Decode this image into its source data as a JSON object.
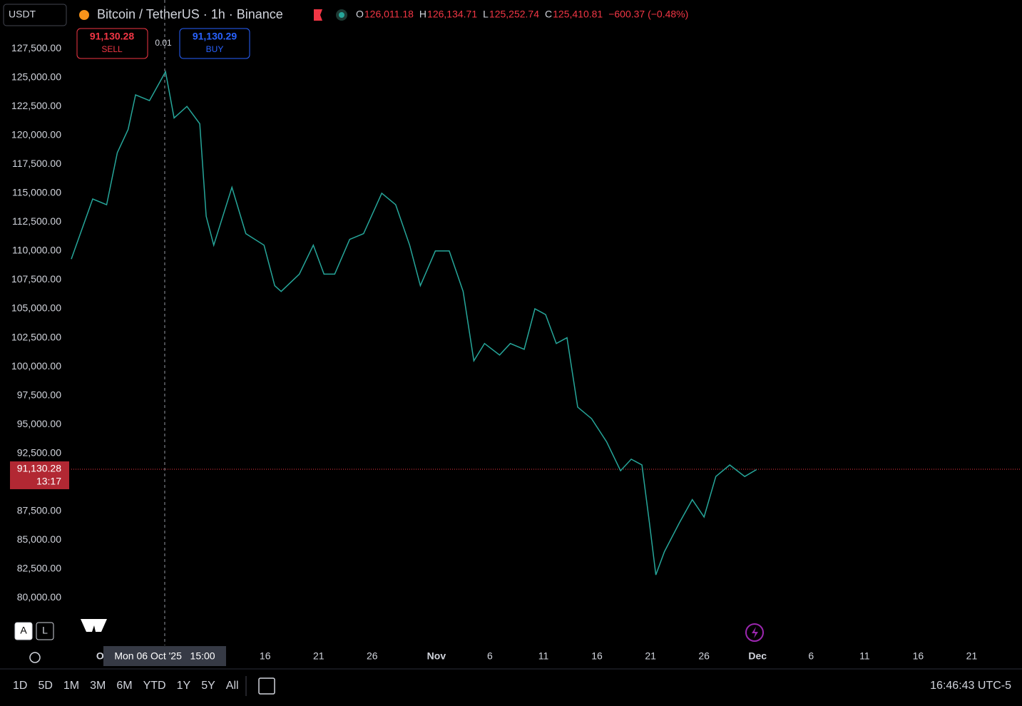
{
  "toolbar": {
    "currency": "USDT",
    "symbol": "Bitcoin / TetherUS · 1h · Binance",
    "ohlc": [
      {
        "key": "O",
        "value": "126,011.18"
      },
      {
        "key": "H",
        "value": "126,134.71"
      },
      {
        "key": "L",
        "value": "125,252.74"
      },
      {
        "key": "C",
        "value": "125,410.81"
      }
    ],
    "change": "−600.37 (−0.48%)"
  },
  "trade": {
    "sell_price": "91,130.28",
    "sell": "SELL",
    "spread": "0.01",
    "buy_price": "91,130.29",
    "buy": "BUY"
  },
  "chart": {
    "type": "line",
    "color": "#26a69a",
    "x": [
      -2.1,
      -0.1,
      1.2,
      2.2,
      3.2,
      3.9,
      5.2,
      6.7,
      7.5,
      8.7,
      9.9,
      10.5,
      11.2,
      12.9,
      14.2,
      15.9,
      16.9,
      17.5,
      19.2,
      20.5,
      21.5,
      22.5,
      23.9,
      25.2,
      26.9,
      28.2,
      29.5,
      30.5,
      31.9,
      33.2,
      34.5,
      35.5,
      36.5,
      37.9,
      38.9,
      40.2,
      41.2,
      42.2,
      43.2,
      44.2,
      45.2,
      46.5,
      47.9,
      49.2,
      50.2,
      51.2,
      51.9,
      52.5,
      53.3,
      54.7,
      55.9,
      57.0,
      58.1,
      59.4,
      60.8,
      61.9
    ],
    "values": [
      109300,
      114500,
      114000,
      118500,
      120500,
      123500,
      123000,
      125500,
      121500,
      122500,
      121000,
      113000,
      110500,
      115500,
      111500,
      110500,
      107000,
      106500,
      108000,
      110500,
      108000,
      108000,
      111000,
      111500,
      115000,
      114000,
      110500,
      107000,
      110000,
      110000,
      106500,
      100500,
      102000,
      101000,
      102000,
      101500,
      105000,
      104500,
      102000,
      102500,
      96500,
      95500,
      93500,
      91000,
      92000,
      91500,
      86500,
      82000,
      84000,
      86500,
      88500,
      87000,
      90500,
      91500,
      90500,
      91100
    ],
    "xlim": [
      -2.1,
      86.5
    ],
    "ylim": [
      75900,
      131700
    ],
    "xticks": [
      {
        "value": 1,
        "label": "Oct"
      },
      {
        "value": 16,
        "label": "16"
      },
      {
        "value": 21,
        "label": "21"
      },
      {
        "value": 26,
        "label": "26"
      },
      {
        "value": 32,
        "label": "Nov"
      },
      {
        "value": 37,
        "label": "6"
      },
      {
        "value": 42,
        "label": "11"
      },
      {
        "value": 47,
        "label": "16"
      },
      {
        "value": 52,
        "label": "21"
      },
      {
        "value": 57,
        "label": "26"
      },
      {
        "value": 62,
        "label": "Dec"
      },
      {
        "value": 67,
        "label": "6"
      },
      {
        "value": 72,
        "label": "11"
      },
      {
        "value": 77,
        "label": "16"
      },
      {
        "value": 82,
        "label": "21"
      }
    ],
    "yticks": [
      {
        "value": 80000,
        "label": "80,000.00"
      },
      {
        "value": 82500,
        "label": "82,500.00"
      },
      {
        "value": 85000,
        "label": "85,000.00"
      },
      {
        "value": 87500,
        "label": "87,500.00"
      },
      {
        "value": 92500,
        "label": "92,500.00"
      },
      {
        "value": 95000,
        "label": "95,000.00"
      },
      {
        "value": 97500,
        "label": "97,500.00"
      },
      {
        "value": 100000,
        "label": "100,000.00"
      },
      {
        "value": 102500,
        "label": "102,500.00"
      },
      {
        "value": 105000,
        "label": "105,000.00"
      },
      {
        "value": 107500,
        "label": "107,500.00"
      },
      {
        "value": 110000,
        "label": "110,000.00"
      },
      {
        "value": 112500,
        "label": "112,500.00"
      },
      {
        "value": 115000,
        "label": "115,000.00"
      },
      {
        "value": 117500,
        "label": "117,500.00"
      },
      {
        "value": 120000,
        "label": "120,000.00"
      },
      {
        "value": 122500,
        "label": "122,500.00"
      },
      {
        "value": 125000,
        "label": "125,000.00"
      },
      {
        "value": 127500,
        "label": "127,500.00"
      }
    ],
    "last_price": {
      "value": 91130.28,
      "label": "91,130.28"
    },
    "countdown": "13:17",
    "crosshair": {
      "x": 6.625,
      "label": "Mon 06 Oct '25   15:00"
    }
  },
  "scale_buttons": [
    "A",
    "L"
  ],
  "ranges": [
    "1D",
    "5D",
    "1M",
    "3M",
    "6M",
    "YTD",
    "1Y",
    "5Y",
    "All"
  ],
  "clock": "16:46:43 UTC-5"
}
